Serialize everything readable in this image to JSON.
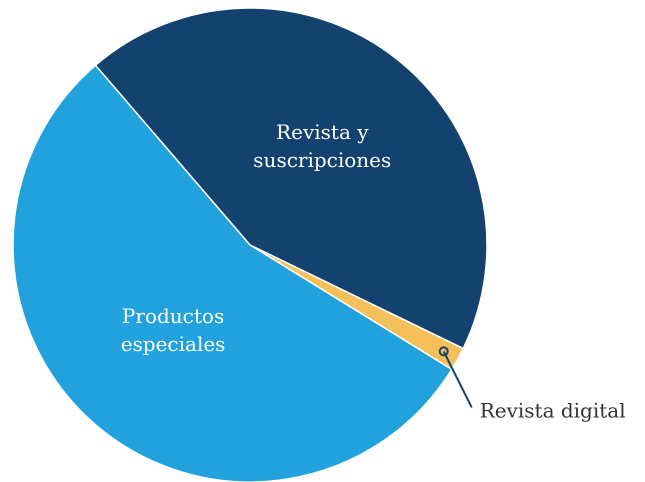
{
  "chart_data": {
    "type": "pie",
    "categories": [
      "Revista y suscripciones",
      "Revista digital",
      "Productos especiales"
    ],
    "values": [
      43.5,
      1.6,
      54.9
    ],
    "colors": [
      "#13426f",
      "#f5c05a",
      "#21a2dc"
    ]
  }
}
